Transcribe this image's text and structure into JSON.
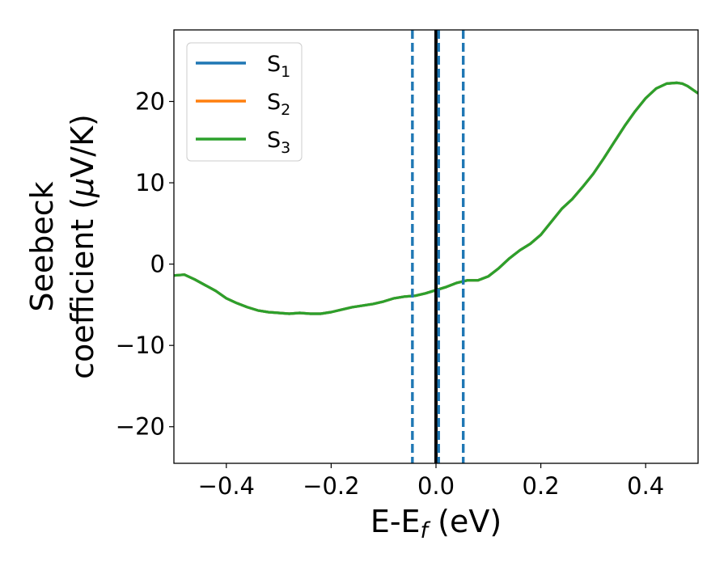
{
  "chart_data": {
    "type": "line",
    "title": "",
    "xlabel": {
      "main": "E-E",
      "sub": "f",
      "unit": " (eV)"
    },
    "ylabel": {
      "line1": "Seebeck",
      "line2_start": "coefficient  (",
      "line2_mu": "μ",
      "line2_end": "V/K)"
    },
    "xlim": [
      -0.5,
      0.5
    ],
    "ylim": [
      -24.5,
      28.8
    ],
    "xticks": [
      -0.4,
      -0.2,
      0.0,
      0.2,
      0.4
    ],
    "xtick_labels": [
      "−0.4",
      "−0.2",
      "0.0",
      "0.2",
      "0.4"
    ],
    "yticks": [
      -20,
      -10,
      0,
      10,
      20
    ],
    "ytick_labels": [
      "−20",
      "−10",
      "0",
      "10",
      "20"
    ],
    "grid": false,
    "legend_placement": "top-left",
    "x": [
      -0.5,
      -0.48,
      -0.46,
      -0.44,
      -0.42,
      -0.4,
      -0.38,
      -0.36,
      -0.34,
      -0.32,
      -0.3,
      -0.28,
      -0.26,
      -0.24,
      -0.22,
      -0.2,
      -0.18,
      -0.16,
      -0.14,
      -0.12,
      -0.1,
      -0.08,
      -0.06,
      -0.04,
      -0.02,
      0.0,
      0.02,
      0.04,
      0.06,
      0.08,
      0.1,
      0.12,
      0.14,
      0.16,
      0.18,
      0.2,
      0.22,
      0.24,
      0.26,
      0.28,
      0.3,
      0.32,
      0.34,
      0.36,
      0.38,
      0.4,
      0.42,
      0.44,
      0.46,
      0.47,
      0.48,
      0.5
    ],
    "series": [
      {
        "name": "S",
        "sub": "1",
        "color": "#1f77b4",
        "values": [
          -1.4,
          -1.3,
          -1.9,
          -2.6,
          -3.3,
          -4.2,
          -4.8,
          -5.3,
          -5.7,
          -5.9,
          -6.0,
          -6.1,
          -6.0,
          -6.1,
          -6.1,
          -5.9,
          -5.6,
          -5.3,
          -5.1,
          -4.9,
          -4.6,
          -4.2,
          -4.0,
          -3.9,
          -3.6,
          -3.2,
          -2.8,
          -2.3,
          -2.0,
          -2.0,
          -1.5,
          -0.5,
          0.7,
          1.7,
          2.5,
          3.6,
          5.2,
          6.8,
          8.0,
          9.5,
          11.1,
          13.0,
          15.0,
          17.0,
          18.8,
          20.4,
          21.6,
          22.2,
          22.3,
          22.2,
          21.9,
          21.0
        ]
      },
      {
        "name": "S",
        "sub": "2",
        "color": "#ff7f0e",
        "values": [
          -1.4,
          -1.3,
          -1.9,
          -2.6,
          -3.3,
          -4.2,
          -4.8,
          -5.3,
          -5.7,
          -5.9,
          -6.0,
          -6.1,
          -6.0,
          -6.1,
          -6.1,
          -5.9,
          -5.6,
          -5.3,
          -5.1,
          -4.9,
          -4.6,
          -4.2,
          -4.0,
          -3.9,
          -3.6,
          -3.2,
          -2.8,
          -2.3,
          -2.0,
          -2.0,
          -1.5,
          -0.5,
          0.7,
          1.7,
          2.5,
          3.6,
          5.2,
          6.8,
          8.0,
          9.5,
          11.1,
          13.0,
          15.0,
          17.0,
          18.8,
          20.4,
          21.6,
          22.2,
          22.3,
          22.2,
          21.9,
          21.0
        ]
      },
      {
        "name": "S",
        "sub": "3",
        "color": "#2ca02c",
        "values": [
          -1.4,
          -1.3,
          -1.9,
          -2.6,
          -3.3,
          -4.2,
          -4.8,
          -5.3,
          -5.7,
          -5.9,
          -6.0,
          -6.1,
          -6.0,
          -6.1,
          -6.1,
          -5.9,
          -5.6,
          -5.3,
          -5.1,
          -4.9,
          -4.6,
          -4.2,
          -4.0,
          -3.9,
          -3.6,
          -3.2,
          -2.8,
          -2.3,
          -2.0,
          -2.0,
          -1.5,
          -0.5,
          0.7,
          1.7,
          2.5,
          3.6,
          5.2,
          6.8,
          8.0,
          9.5,
          11.1,
          13.0,
          15.0,
          17.0,
          18.8,
          20.4,
          21.6,
          22.2,
          22.3,
          22.2,
          21.9,
          21.0
        ]
      }
    ],
    "vlines": [
      {
        "x": 0.0,
        "style": "solid",
        "color": "#000000"
      },
      {
        "x": -0.045,
        "style": "dashed",
        "color": "#1f77b4"
      },
      {
        "x": 0.005,
        "style": "dashed",
        "color": "#1f77b4"
      },
      {
        "x": 0.052,
        "style": "dashed",
        "color": "#1f77b4"
      }
    ]
  }
}
